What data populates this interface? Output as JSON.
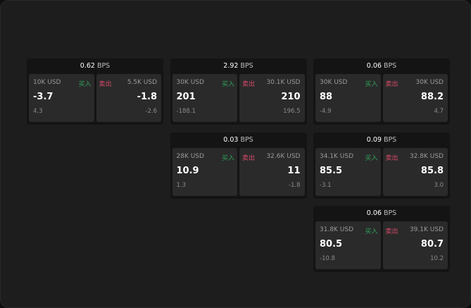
{
  "colors": {
    "buy": "#2fa35a",
    "sell": "#d94a6a",
    "background": "#1d1d1d",
    "cell": "#2a2a2a"
  },
  "labels": {
    "buy": "买入",
    "sell": "卖出",
    "unit": "BPS"
  },
  "groups": [
    {
      "row": 0,
      "col": 0,
      "spread": "0.62",
      "bid": {
        "qty": "10K USD",
        "price": "-3.7",
        "change": "4.3"
      },
      "ask": {
        "qty": "5.5K USD",
        "price": "-1.8",
        "change": "-2.6"
      }
    },
    {
      "row": 0,
      "col": 1,
      "spread": "2.92",
      "bid": {
        "qty": "30K USD",
        "price": "201",
        "change": "-188.1"
      },
      "ask": {
        "qty": "30.1K USD",
        "price": "210",
        "change": "196.5"
      }
    },
    {
      "row": 0,
      "col": 2,
      "spread": "0.06",
      "bid": {
        "qty": "30K USD",
        "price": "88",
        "change": "-4.9"
      },
      "ask": {
        "qty": "30K USD",
        "price": "88.2",
        "change": "4.7"
      }
    },
    {
      "row": 1,
      "col": 1,
      "spread": "0.03",
      "bid": {
        "qty": "28K USD",
        "price": "10.9",
        "change": "1.3"
      },
      "ask": {
        "qty": "32.6K USD",
        "price": "11",
        "change": "-1.8"
      }
    },
    {
      "row": 1,
      "col": 2,
      "spread": "0.09",
      "bid": {
        "qty": "34.1K USD",
        "price": "85.5",
        "change": "-3.1"
      },
      "ask": {
        "qty": "32.8K USD",
        "price": "85.8",
        "change": "3.0"
      }
    },
    {
      "row": 2,
      "col": 2,
      "spread": "0.06",
      "bid": {
        "qty": "31.8K USD",
        "price": "80.5",
        "change": "-10.8"
      },
      "ask": {
        "qty": "39.1K USD",
        "price": "80.7",
        "change": "10.2"
      }
    }
  ]
}
